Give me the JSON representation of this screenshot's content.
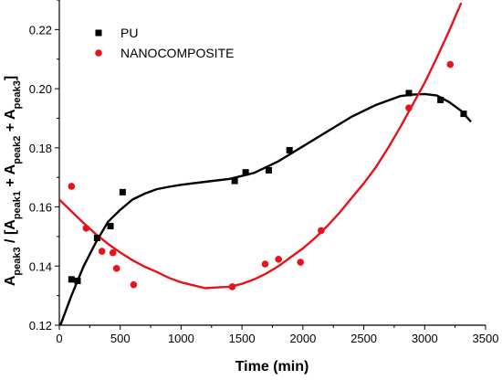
{
  "chart_data": {
    "type": "scatter",
    "xlabel": "Time (min)",
    "ylabel": {
      "parts": [
        {
          "text": "A",
          "sub": false
        },
        {
          "text": "peak3",
          "sub": true
        },
        {
          "text": " / [A",
          "sub": false
        },
        {
          "text": "peak1",
          "sub": true
        },
        {
          "text": " + A",
          "sub": false
        },
        {
          "text": "peak2",
          "sub": true
        },
        {
          "text": " + A",
          "sub": false
        },
        {
          "text": "peak3",
          "sub": true
        },
        {
          "text": "]",
          "sub": false
        }
      ]
    },
    "xlim": [
      0,
      3500
    ],
    "ylim": [
      0.12,
      0.23
    ],
    "xticks": [
      0,
      500,
      1000,
      1500,
      2000,
      2500,
      3000,
      3500
    ],
    "xtick_labels": [
      "0",
      "500",
      "1000",
      "1500",
      "2000",
      "2500",
      "3000",
      "3500"
    ],
    "yticks": [
      0.12,
      0.14,
      0.16,
      0.18,
      0.2,
      0.22
    ],
    "ytick_labels": [
      "0.12",
      "0.14",
      "0.16",
      "0.18",
      "0.20",
      "0.22"
    ],
    "legend_position": "top-left",
    "grid": false,
    "series": [
      {
        "name": "PU",
        "marker": "square",
        "color": "#000000",
        "points": [
          [
            100,
            0.1355
          ],
          [
            150,
            0.135
          ],
          [
            310,
            0.1495
          ],
          [
            420,
            0.1535
          ],
          [
            520,
            0.165
          ],
          [
            1440,
            0.1688
          ],
          [
            1530,
            0.1717
          ],
          [
            1720,
            0.1724
          ],
          [
            1890,
            0.1792
          ],
          [
            2870,
            0.1985
          ],
          [
            3130,
            0.1962
          ],
          [
            3320,
            0.1915
          ]
        ],
        "fit": [
          [
            0,
            0.119
          ],
          [
            100,
            0.13
          ],
          [
            200,
            0.14
          ],
          [
            300,
            0.148
          ],
          [
            400,
            0.155
          ],
          [
            500,
            0.159
          ],
          [
            600,
            0.1625
          ],
          [
            700,
            0.1645
          ],
          [
            800,
            0.166
          ],
          [
            900,
            0.1668
          ],
          [
            1000,
            0.1675
          ],
          [
            1200,
            0.1685
          ],
          [
            1400,
            0.1695
          ],
          [
            1600,
            0.1715
          ],
          [
            1800,
            0.1755
          ],
          [
            2000,
            0.1805
          ],
          [
            2200,
            0.1855
          ],
          [
            2400,
            0.1905
          ],
          [
            2600,
            0.1945
          ],
          [
            2800,
            0.1975
          ],
          [
            2900,
            0.198
          ],
          [
            3000,
            0.1982
          ],
          [
            3100,
            0.1977
          ],
          [
            3200,
            0.1955
          ],
          [
            3300,
            0.1925
          ],
          [
            3380,
            0.1888
          ]
        ]
      },
      {
        "name": "NANOCOMPOSITE",
        "marker": "circle",
        "color": "#e8121a",
        "points": [
          [
            100,
            0.167
          ],
          [
            220,
            0.1528
          ],
          [
            350,
            0.145
          ],
          [
            440,
            0.1445
          ],
          [
            470,
            0.1392
          ],
          [
            610,
            0.1337
          ],
          [
            1420,
            0.133
          ],
          [
            1690,
            0.1407
          ],
          [
            1800,
            0.1423
          ],
          [
            1980,
            0.1413
          ],
          [
            2150,
            0.152
          ],
          [
            2870,
            0.1935
          ],
          [
            3210,
            0.2082
          ]
        ],
        "fit": [
          [
            0,
            0.1625
          ],
          [
            100,
            0.1585
          ],
          [
            200,
            0.1545
          ],
          [
            300,
            0.1508
          ],
          [
            400,
            0.1475
          ],
          [
            500,
            0.1446
          ],
          [
            600,
            0.142
          ],
          [
            700,
            0.1398
          ],
          [
            800,
            0.138
          ],
          [
            900,
            0.136
          ],
          [
            1000,
            0.1345
          ],
          [
            1100,
            0.1335
          ],
          [
            1200,
            0.1325
          ],
          [
            1300,
            0.1328
          ],
          [
            1400,
            0.133
          ],
          [
            1500,
            0.134
          ],
          [
            1600,
            0.1355
          ],
          [
            1700,
            0.1375
          ],
          [
            1800,
            0.14
          ],
          [
            1900,
            0.143
          ],
          [
            2000,
            0.146
          ],
          [
            2100,
            0.1495
          ],
          [
            2200,
            0.1535
          ],
          [
            2300,
            0.158
          ],
          [
            2400,
            0.163
          ],
          [
            2500,
            0.168
          ],
          [
            2600,
            0.1735
          ],
          [
            2700,
            0.18
          ],
          [
            2800,
            0.187
          ],
          [
            2900,
            0.1945
          ],
          [
            3000,
            0.202
          ],
          [
            3100,
            0.2105
          ],
          [
            3200,
            0.2195
          ],
          [
            3300,
            0.229
          ]
        ]
      }
    ]
  }
}
